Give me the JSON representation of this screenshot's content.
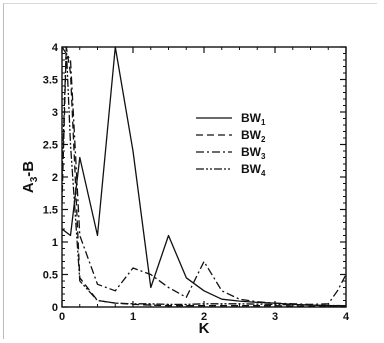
{
  "chart_data": {
    "type": "line",
    "xlabel": "K",
    "ylabel": "A3-B",
    "ylabel_parts": {
      "base": "A",
      "sub": "3",
      "rest": "-B"
    },
    "xlim": [
      0,
      4
    ],
    "ylim": [
      0,
      4
    ],
    "x_ticks": [
      "0",
      "1",
      "2",
      "3",
      "4"
    ],
    "y_ticks": [
      "0",
      "0.5",
      "1",
      "1.5",
      "2",
      "2.5",
      "3",
      "3.5",
      "4"
    ],
    "grid": false,
    "legend_position": "right-middle",
    "series": [
      {
        "name": "BW1",
        "name_base": "BW",
        "name_sub": "1",
        "style": "solid",
        "x": [
          0,
          0.12,
          0.25,
          0.5,
          0.75,
          1.0,
          1.25,
          1.5,
          1.75,
          2.0,
          2.25,
          2.5,
          2.75,
          3.0,
          3.25,
          3.5,
          3.75,
          4.0
        ],
        "y": [
          1.2,
          1.1,
          2.3,
          1.1,
          4.0,
          2.4,
          0.3,
          1.1,
          0.45,
          0.25,
          0.12,
          0.09,
          0.07,
          0.06,
          0.04,
          0.03,
          0.02,
          0.02
        ]
      },
      {
        "name": "BW2",
        "name_base": "BW",
        "name_sub": "2",
        "style": "dashed",
        "x": [
          0,
          0.06,
          0.12,
          0.25,
          0.5,
          0.75,
          1.0,
          1.25,
          1.5,
          2.0,
          2.5,
          3.0,
          3.5,
          4.0
        ],
        "y": [
          1.6,
          4.0,
          3.6,
          0.45,
          0.1,
          0.06,
          0.04,
          0.03,
          0.02,
          0.02,
          0.02,
          0.02,
          0.01,
          0.01
        ]
      },
      {
        "name": "BW3",
        "name_base": "BW",
        "name_sub": "3",
        "style": "dash-dot",
        "x": [
          0,
          0.12,
          0.25,
          0.5,
          0.75,
          1.0,
          1.25,
          1.5,
          1.75,
          2.0,
          2.25,
          2.5,
          2.75,
          3.0,
          3.25,
          3.5,
          3.75,
          3.88,
          4.0
        ],
        "y": [
          4.0,
          3.8,
          1.1,
          0.35,
          0.25,
          0.6,
          0.5,
          0.3,
          0.15,
          0.7,
          0.25,
          0.12,
          0.08,
          0.06,
          0.05,
          0.04,
          0.05,
          0.25,
          0.5
        ]
      },
      {
        "name": "BW4",
        "name_base": "BW",
        "name_sub": "4",
        "style": "dash-dot-dot",
        "x": [
          0,
          0.06,
          0.12,
          0.25,
          0.5,
          0.75,
          1.0,
          1.25,
          1.5,
          1.75,
          2.0,
          2.5,
          3.0,
          3.5,
          4.0
        ],
        "y": [
          2.0,
          4.0,
          2.5,
          0.4,
          0.1,
          0.06,
          0.05,
          0.05,
          0.04,
          0.04,
          0.05,
          0.05,
          0.04,
          0.03,
          0.02
        ]
      }
    ]
  }
}
